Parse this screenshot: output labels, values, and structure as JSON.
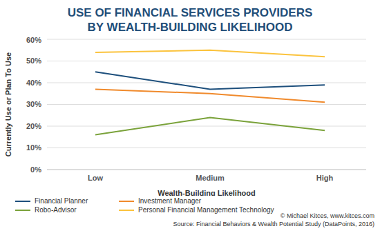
{
  "chart_data": {
    "type": "line",
    "title": "USE OF FINANCIAL SERVICES PROVIDERS BY WEALTH-BUILDING LIKELIHOOD",
    "x_label": "Wealth-Building Likelihood",
    "y_label": "Currently Use or Plan To Use",
    "categories": [
      "Low",
      "Medium",
      "High"
    ],
    "series": [
      {
        "name": "Financial Planner",
        "color": "#1d4f7c",
        "values": [
          45,
          37,
          39
        ]
      },
      {
        "name": "Investment Manager",
        "color": "#f08a2c",
        "values": [
          37,
          35,
          31
        ]
      },
      {
        "name": "Robo-Advisor",
        "color": "#7aa23a",
        "values": [
          16,
          24,
          18
        ]
      },
      {
        "name": "Personal Financial Management Technology",
        "color": "#fbc33d",
        "values": [
          54,
          55,
          52
        ]
      }
    ],
    "ylim": [
      0,
      60
    ],
    "yticks": [
      {
        "value": 0,
        "label": "0%"
      },
      {
        "value": 10,
        "label": "10%"
      },
      {
        "value": 20,
        "label": "20%"
      },
      {
        "value": 30,
        "label": "30%"
      },
      {
        "value": 40,
        "label": "40%"
      },
      {
        "value": 50,
        "label": "50%"
      },
      {
        "value": 60,
        "label": "60%"
      }
    ],
    "grid": true,
    "legend": "bottom",
    "annotations": [
      "© Michael Kitces, www.kitces.com",
      "Source: Financial Behaviors & Wealth Potential Study (DataPoints, 2016)"
    ]
  }
}
